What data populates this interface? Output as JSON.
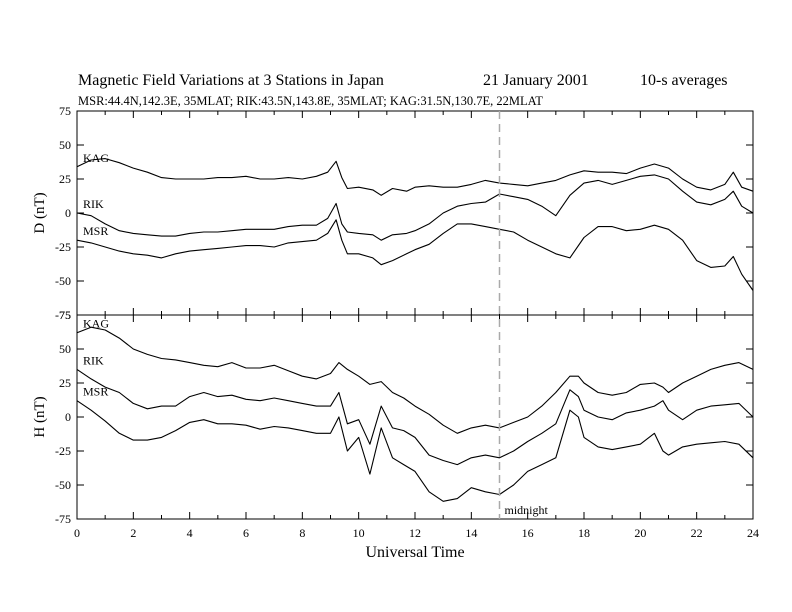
{
  "header": {
    "title": "Magnetic Field Variations at 3 Stations in Japan",
    "date": "21 January 2001",
    "averaging": "10-s averages",
    "stations_line": "MSR:44.4N,142.3E, 35MLAT;  RIK:43.5N,143.8E, 35MLAT;  KAG:31.5N,130.7E, 22MLAT"
  },
  "chart_data": [
    {
      "type": "line",
      "panel": "D",
      "ylabel": "D (nT)",
      "ylim": [
        -75,
        75
      ],
      "yticks": [
        75,
        50,
        25,
        0,
        -25,
        -50,
        -75
      ],
      "xlim": [
        0,
        24
      ],
      "grid": false,
      "series": [
        {
          "name": "KAG",
          "x": [
            0,
            0.5,
            1,
            1.5,
            2,
            2.5,
            3,
            3.5,
            4,
            4.5,
            5,
            5.5,
            6,
            6.5,
            7,
            7.5,
            8,
            8.5,
            8.9,
            9.2,
            9.4,
            9.6,
            10,
            10.5,
            10.8,
            11.2,
            11.7,
            12,
            12.5,
            13,
            13.5,
            14,
            14.5,
            15,
            15.5,
            16,
            16.5,
            17,
            17.5,
            18,
            18.5,
            19,
            19.5,
            20,
            20.5,
            21,
            21.5,
            22,
            22.5,
            23,
            23.3,
            23.6,
            24
          ],
          "y": [
            34,
            39,
            40,
            37,
            33,
            30,
            26,
            25,
            25,
            25,
            26,
            26,
            27,
            25,
            25,
            26,
            25,
            27,
            30,
            38,
            26,
            18,
            19,
            17,
            13,
            18,
            16,
            19,
            20,
            19,
            19,
            21,
            24,
            22,
            21,
            20,
            22,
            24,
            28,
            31,
            30,
            30,
            29,
            33,
            36,
            33,
            25,
            19,
            17,
            21,
            30,
            19,
            16
          ]
        },
        {
          "name": "RIK",
          "x": [
            0,
            0.5,
            1,
            1.5,
            2,
            2.5,
            3,
            3.5,
            4,
            4.5,
            5,
            5.5,
            6,
            6.5,
            7,
            7.5,
            8,
            8.5,
            8.9,
            9.2,
            9.4,
            9.6,
            10,
            10.5,
            10.8,
            11.2,
            11.7,
            12,
            12.5,
            13,
            13.5,
            14,
            14.5,
            15,
            15.5,
            16,
            16.5,
            17,
            17.5,
            18,
            18.5,
            19,
            19.5,
            20,
            20.5,
            21,
            21.5,
            22,
            22.5,
            23,
            23.3,
            23.6,
            24
          ],
          "y": [
            0,
            -2,
            -8,
            -13,
            -15,
            -16,
            -17,
            -17,
            -15,
            -14,
            -14,
            -13,
            -12,
            -12,
            -12,
            -10,
            -9,
            -9,
            -4,
            7,
            -8,
            -14,
            -15,
            -16,
            -20,
            -16,
            -15,
            -13,
            -8,
            0,
            5,
            7,
            8,
            14,
            12,
            10,
            5,
            -2,
            13,
            22,
            24,
            21,
            24,
            27,
            28,
            25,
            16,
            8,
            6,
            10,
            16,
            5,
            0
          ]
        },
        {
          "name": "MSR",
          "x": [
            0,
            0.5,
            1,
            1.5,
            2,
            2.5,
            3,
            3.5,
            4,
            4.5,
            5,
            5.5,
            6,
            6.5,
            7,
            7.5,
            8,
            8.5,
            8.9,
            9.2,
            9.4,
            9.6,
            10,
            10.5,
            10.8,
            11.2,
            11.7,
            12,
            12.5,
            13,
            13.5,
            14,
            14.5,
            15,
            15.5,
            16,
            16.5,
            17,
            17.5,
            18,
            18.5,
            19,
            19.5,
            20,
            20.5,
            21,
            21.5,
            22,
            22.5,
            23,
            23.3,
            23.6,
            24
          ],
          "y": [
            -20,
            -22,
            -25,
            -28,
            -30,
            -31,
            -33,
            -30,
            -28,
            -27,
            -26,
            -25,
            -24,
            -24,
            -25,
            -22,
            -21,
            -20,
            -15,
            -5,
            -20,
            -30,
            -30,
            -33,
            -38,
            -35,
            -30,
            -27,
            -23,
            -15,
            -8,
            -8,
            -10,
            -12,
            -14,
            -20,
            -25,
            -30,
            -33,
            -18,
            -10,
            -10,
            -13,
            -12,
            -9,
            -12,
            -20,
            -35,
            -40,
            -39,
            -32,
            -45,
            -57
          ]
        }
      ]
    },
    {
      "type": "line",
      "panel": "H",
      "ylabel": "H (nT)",
      "ylim": [
        -75,
        75
      ],
      "yticks": [
        75,
        50,
        25,
        0,
        -25,
        -50,
        -75
      ],
      "xlim": [
        0,
        24
      ],
      "xticks": [
        0,
        2,
        4,
        6,
        8,
        10,
        12,
        14,
        16,
        18,
        20,
        22,
        24
      ],
      "xlabel": "Universal Time",
      "grid": false,
      "series": [
        {
          "name": "KAG",
          "x": [
            0,
            0.5,
            1,
            1.5,
            2,
            2.5,
            3,
            3.5,
            4,
            4.5,
            5,
            5.5,
            6,
            6.5,
            7,
            7.5,
            8,
            8.5,
            9,
            9.3,
            9.6,
            10,
            10.4,
            10.8,
            11.2,
            11.6,
            12,
            12.5,
            13,
            13.5,
            14,
            14.5,
            15,
            15.5,
            16,
            16.5,
            17,
            17.5,
            17.8,
            18,
            18.5,
            19,
            19.5,
            20,
            20.5,
            20.8,
            21,
            21.5,
            22,
            22.5,
            23,
            23.5,
            24
          ],
          "y": [
            62,
            66,
            64,
            58,
            50,
            46,
            43,
            42,
            40,
            38,
            37,
            40,
            36,
            36,
            38,
            34,
            30,
            28,
            32,
            40,
            35,
            30,
            24,
            26,
            18,
            14,
            8,
            2,
            -6,
            -12,
            -8,
            -6,
            -8,
            -4,
            0,
            8,
            18,
            30,
            30,
            25,
            18,
            16,
            18,
            24,
            25,
            22,
            18,
            25,
            30,
            35,
            38,
            40,
            35
          ]
        },
        {
          "name": "RIK",
          "x": [
            0,
            0.5,
            1,
            1.5,
            2,
            2.5,
            3,
            3.5,
            4,
            4.5,
            5,
            5.5,
            6,
            6.5,
            7,
            7.5,
            8,
            8.5,
            9,
            9.3,
            9.6,
            10,
            10.4,
            10.8,
            11.2,
            11.6,
            12,
            12.5,
            13,
            13.5,
            14,
            14.5,
            15,
            15.5,
            16,
            16.5,
            17,
            17.5,
            17.8,
            18,
            18.5,
            19,
            19.5,
            20,
            20.5,
            20.8,
            21,
            21.5,
            22,
            22.5,
            23,
            23.5,
            24
          ],
          "y": [
            35,
            28,
            22,
            18,
            10,
            6,
            8,
            8,
            15,
            18,
            15,
            16,
            13,
            12,
            14,
            12,
            10,
            8,
            8,
            18,
            -5,
            -2,
            -20,
            8,
            -8,
            -10,
            -15,
            -28,
            -32,
            -35,
            -30,
            -28,
            -30,
            -25,
            -18,
            -12,
            -5,
            20,
            15,
            5,
            0,
            -2,
            3,
            5,
            8,
            12,
            5,
            -2,
            5,
            8,
            9,
            10,
            0
          ]
        },
        {
          "name": "MSR",
          "x": [
            0,
            0.5,
            1,
            1.5,
            2,
            2.5,
            3,
            3.5,
            4,
            4.5,
            5,
            5.5,
            6,
            6.5,
            7,
            7.5,
            8,
            8.5,
            9,
            9.3,
            9.6,
            10,
            10.4,
            10.8,
            11.2,
            11.6,
            12,
            12.5,
            13,
            13.5,
            14,
            14.5,
            15,
            15.5,
            16,
            16.5,
            17,
            17.5,
            17.8,
            18,
            18.5,
            19,
            19.5,
            20,
            20.5,
            20.8,
            21,
            21.5,
            22,
            22.5,
            23,
            23.5,
            24
          ],
          "y": [
            12,
            5,
            -3,
            -12,
            -17,
            -17,
            -15,
            -10,
            -4,
            -2,
            -5,
            -5,
            -6,
            -9,
            -7,
            -8,
            -10,
            -12,
            -12,
            0,
            -25,
            -15,
            -42,
            -8,
            -30,
            -35,
            -40,
            -55,
            -62,
            -60,
            -52,
            -55,
            -57,
            -50,
            -40,
            -35,
            -30,
            5,
            0,
            -15,
            -22,
            -24,
            -22,
            -20,
            -12,
            -25,
            -28,
            -22,
            -20,
            -19,
            -18,
            -20,
            -30
          ]
        }
      ]
    }
  ],
  "panel_labels": {
    "ylabel_D": "D (nT)",
    "ylabel_H": "H (nT)",
    "xlabel": "Universal Time"
  },
  "marker": {
    "x": 15,
    "label": "midnight"
  },
  "colors": {
    "line": "#000000",
    "marker": "#aaaaaa"
  }
}
